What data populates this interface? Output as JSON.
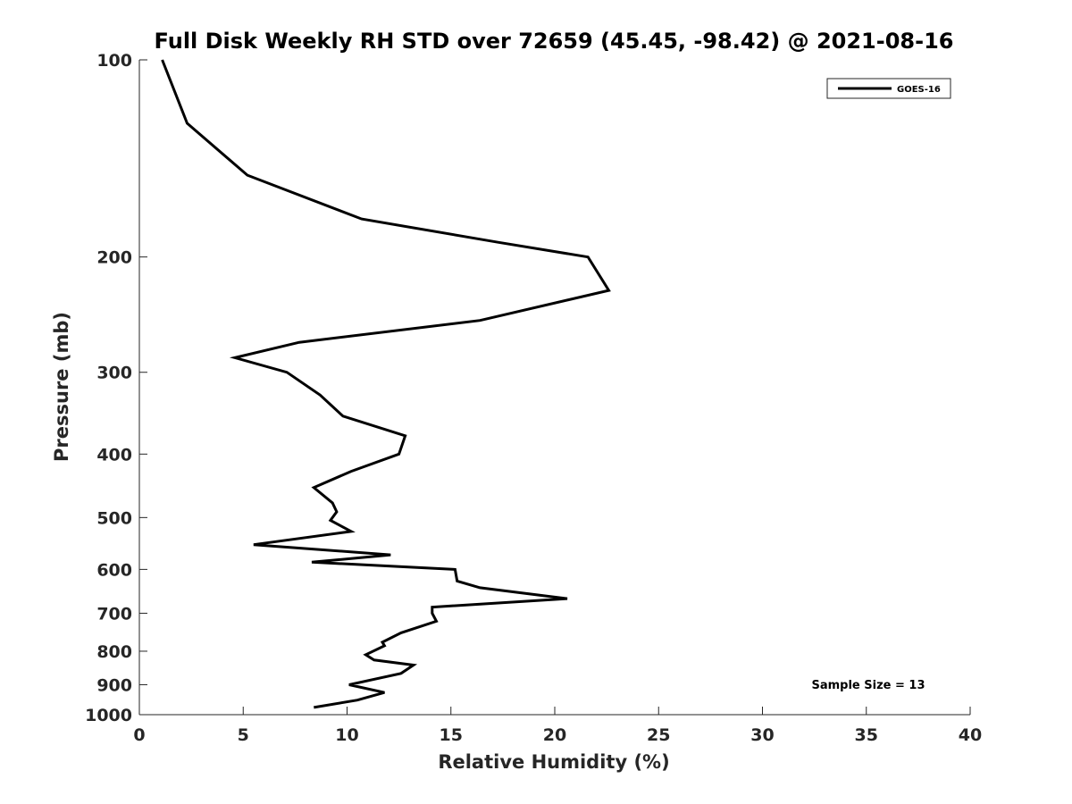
{
  "chart_data": {
    "type": "line",
    "title": "Full Disk Weekly RH STD over 72659 (45.45, -98.42) @ 2021-08-16",
    "xlabel": "Relative Humidity (%)",
    "ylabel": "Pressure (mb)",
    "xlim": [
      0,
      40
    ],
    "ylim": [
      100,
      1000
    ],
    "yscale": "log",
    "y_reversed": true,
    "x_ticks": [
      "0",
      "5",
      "10",
      "15",
      "20",
      "25",
      "30",
      "35",
      "40"
    ],
    "y_ticks": [
      "100",
      "200",
      "300",
      "400",
      "500",
      "600",
      "700",
      "800",
      "900",
      "1000"
    ],
    "legend": {
      "position": "top-right",
      "entries": [
        "GOES-16"
      ]
    },
    "annotation": "Sample Size = 13",
    "series": [
      {
        "name": "GOES-16",
        "color": "#000000",
        "x": [
          1.1,
          2.3,
          5.2,
          10.7,
          17.3,
          21.6,
          22.6,
          16.4,
          7.7,
          4.6,
          7.1,
          8.7,
          9.8,
          12.8,
          12.5,
          10.2,
          8.4,
          9.3,
          9.5,
          9.2,
          10.2,
          5.5,
          12.1,
          8.3,
          15.2,
          15.3,
          16.4,
          20.6,
          14.1,
          14.1,
          14.3,
          12.6,
          11.7,
          11.8,
          10.9,
          11.3,
          13.2,
          12.6,
          10.1,
          11.8,
          10.5,
          8.4
        ],
        "y": [
          100,
          125,
          150,
          175,
          190,
          200,
          225,
          250,
          270,
          285,
          300,
          325,
          350,
          375,
          400,
          425,
          450,
          475,
          490,
          505,
          525,
          550,
          570,
          585,
          600,
          625,
          640,
          665,
          685,
          700,
          720,
          750,
          775,
          785,
          810,
          825,
          840,
          865,
          900,
          925,
          950,
          975
        ]
      }
    ]
  }
}
